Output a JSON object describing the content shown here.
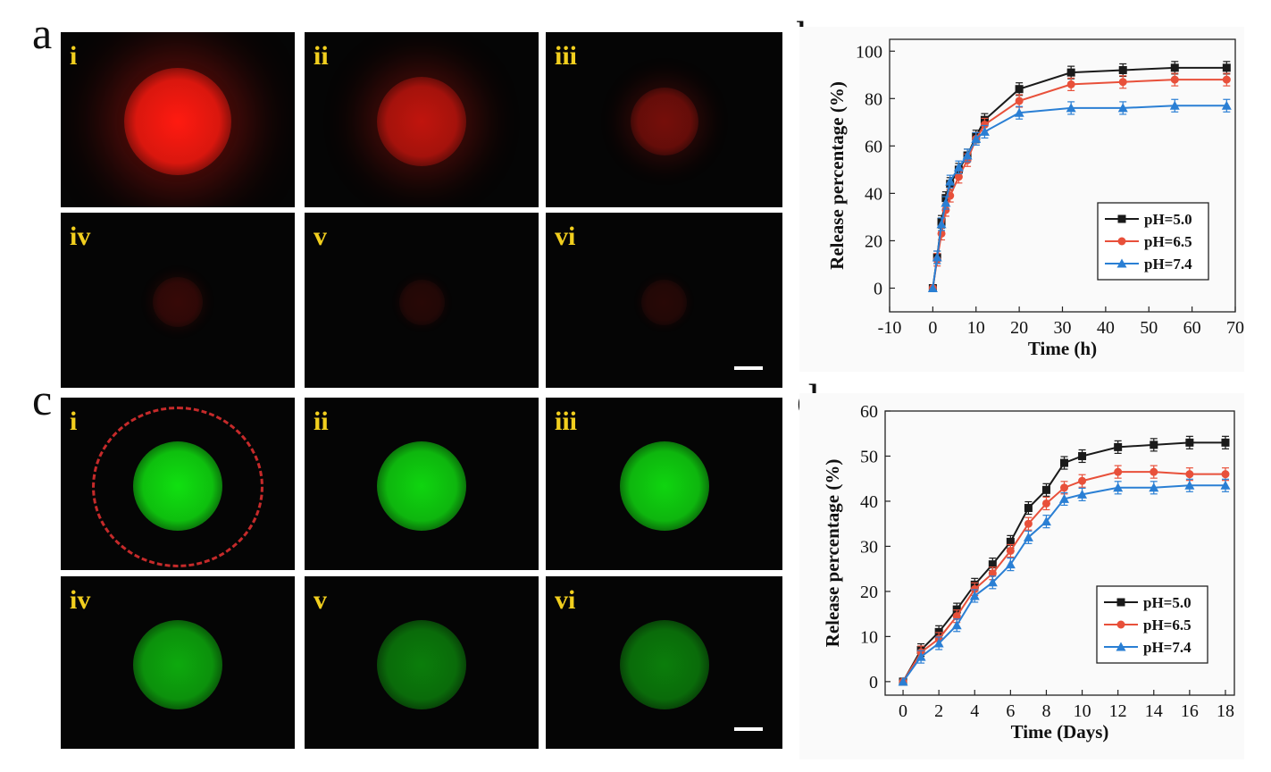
{
  "panels": {
    "a": {
      "letter": "a",
      "images": [
        {
          "label": "i",
          "intensity": 1.0
        },
        {
          "label": "ii",
          "intensity": 0.75
        },
        {
          "label": "iii",
          "intensity": 0.45
        },
        {
          "label": "iv",
          "intensity": 0.2
        },
        {
          "label": "v",
          "intensity": 0.14
        },
        {
          "label": "vi",
          "intensity": 0.14
        }
      ],
      "color": "#ff1a10"
    },
    "c": {
      "letter": "c",
      "images": [
        {
          "label": "i",
          "intensity": 1.0
        },
        {
          "label": "ii",
          "intensity": 0.95
        },
        {
          "label": "iii",
          "intensity": 0.95
        },
        {
          "label": "iv",
          "intensity": 0.75
        },
        {
          "label": "v",
          "intensity": 0.55
        },
        {
          "label": "vi",
          "intensity": 0.55
        }
      ],
      "color": "#10e010"
    },
    "b": {
      "letter": "b"
    },
    "d": {
      "letter": "d"
    }
  },
  "chart_data": [
    {
      "id": "b",
      "type": "line",
      "title": "",
      "xlabel": "Time (h)",
      "ylabel": "Release percentage (%)",
      "xlim": [
        -10,
        70
      ],
      "ylim": [
        -10,
        105
      ],
      "xticks": [
        -10,
        0,
        10,
        20,
        30,
        40,
        50,
        60,
        70
      ],
      "yticks": [
        0,
        20,
        40,
        60,
        80,
        100
      ],
      "legend": "bottom-right",
      "x": [
        0,
        1,
        2,
        3,
        4,
        6,
        8,
        10,
        12,
        20,
        32,
        44,
        56,
        68
      ],
      "series": [
        {
          "name": "pH=5.0",
          "color": "#1a1a1a",
          "marker": "square",
          "values": [
            0,
            13,
            28,
            38,
            44,
            50,
            56,
            64,
            71,
            84,
            91,
            92,
            93,
            93
          ]
        },
        {
          "name": "pH=6.5",
          "color": "#e8503a",
          "marker": "circle",
          "values": [
            0,
            12,
            23,
            33,
            39,
            47,
            54,
            63,
            69,
            79,
            86,
            87,
            88,
            88
          ]
        },
        {
          "name": "pH=7.4",
          "color": "#2a7fd4",
          "marker": "triangle",
          "values": [
            0,
            13,
            27,
            36,
            45,
            51,
            56,
            63,
            66,
            74,
            76,
            76,
            77,
            77
          ]
        }
      ]
    },
    {
      "id": "d",
      "type": "line",
      "title": "",
      "xlabel": "Time (Days)",
      "ylabel": "Release percentage (%)",
      "xlim": [
        -1,
        18.5
      ],
      "ylim": [
        -3,
        60
      ],
      "xticks": [
        0,
        2,
        4,
        6,
        8,
        10,
        12,
        14,
        16,
        18
      ],
      "yticks": [
        0,
        10,
        20,
        30,
        40,
        50,
        60
      ],
      "legend": "bottom-right",
      "x": [
        0,
        1,
        2,
        3,
        4,
        5,
        6,
        7,
        8,
        9,
        10,
        12,
        14,
        16,
        18
      ],
      "series": [
        {
          "name": "pH=5.0",
          "color": "#1a1a1a",
          "marker": "square",
          "values": [
            0,
            7,
            11,
            16,
            21.5,
            26,
            31,
            38.5,
            42.5,
            48.5,
            50,
            52,
            52.5,
            53,
            53
          ]
        },
        {
          "name": "pH=6.5",
          "color": "#e8503a",
          "marker": "circle",
          "values": [
            0,
            6.5,
            9.5,
            14.5,
            20.5,
            24,
            29,
            35,
            39.5,
            43,
            44.5,
            46.5,
            46.5,
            46,
            46
          ]
        },
        {
          "name": "pH=7.4",
          "color": "#2a7fd4",
          "marker": "triangle",
          "values": [
            0,
            5.5,
            8.5,
            12.5,
            19,
            22,
            26,
            32,
            35.5,
            40.5,
            41.5,
            43,
            43,
            43.5,
            43.5
          ]
        }
      ]
    }
  ]
}
